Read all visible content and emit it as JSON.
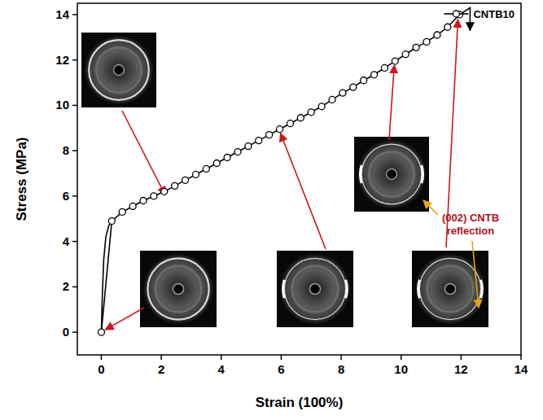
{
  "chart_data": {
    "type": "line",
    "x_label": "Strain (100%)",
    "y_label": "Stress (MPa)",
    "xlim": [
      -0.8,
      14
    ],
    "ylim": [
      -1,
      14.5
    ],
    "xticks": [
      0,
      2,
      4,
      6,
      8,
      10,
      12,
      14
    ],
    "yticks": [
      0,
      2,
      4,
      6,
      8,
      10,
      12,
      14
    ],
    "grid": false,
    "legend": "top-right",
    "series": [
      {
        "name": "CNTB10",
        "color": "#000000",
        "marker": "circle",
        "line_style": "solid",
        "x": [
          0,
          0.35,
          0.7,
          1.05,
          1.4,
          1.75,
          2.1,
          2.45,
          2.8,
          3.15,
          3.5,
          3.85,
          4.2,
          4.55,
          4.9,
          5.25,
          5.6,
          5.95,
          6.3,
          6.65,
          7.0,
          7.35,
          7.7,
          8.05,
          8.4,
          8.75,
          9.1,
          9.45,
          9.8,
          10.15,
          10.5,
          10.85,
          11.2,
          11.55,
          11.95
        ],
        "values": [
          0,
          4.9,
          5.3,
          5.55,
          5.8,
          6.0,
          6.2,
          6.45,
          6.7,
          6.95,
          7.2,
          7.45,
          7.7,
          7.95,
          8.2,
          8.45,
          8.7,
          8.95,
          9.2,
          9.45,
          9.7,
          9.95,
          10.25,
          10.55,
          10.8,
          11.1,
          11.35,
          11.65,
          11.95,
          12.25,
          12.55,
          12.8,
          13.1,
          13.45,
          14.0
        ]
      },
      {
        "color": "#000000",
        "marker": "none",
        "line_style": "solid",
        "x": [
          0,
          0.03,
          0.08,
          0.15,
          0.25,
          0.35
        ],
        "values": [
          0,
          1.5,
          3.2,
          4.2,
          4.7,
          4.9
        ]
      },
      {
        "color": "#000000",
        "marker": "arrow",
        "line_style": "solid",
        "x": [
          11.95,
          12.3,
          12.3
        ],
        "values": [
          14.0,
          14.3,
          13.3
        ]
      }
    ],
    "annotations": [
      {
        "text": "(002) CNTB reflection",
        "color": "#b0141e"
      }
    ]
  }
}
